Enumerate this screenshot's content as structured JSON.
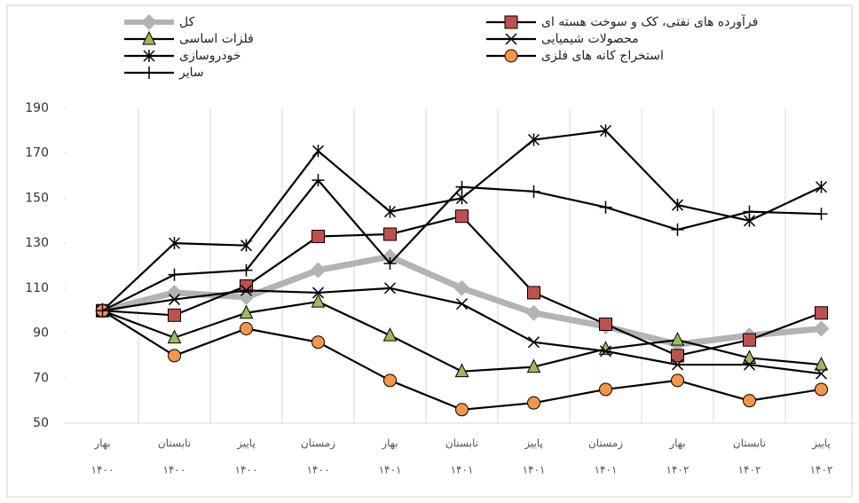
{
  "chart_data": {
    "type": "line",
    "categories": [
      [
        "بهار",
        "۱۴۰۰"
      ],
      [
        "تابستان",
        "۱۴۰۰"
      ],
      [
        "پاییز",
        "۱۴۰۰"
      ],
      [
        "زمستان",
        "۱۴۰۰"
      ],
      [
        "بهار",
        "۱۴۰۱"
      ],
      [
        "تابستان",
        "۱۴۰۱"
      ],
      [
        "پاییز",
        "۱۴۰۱"
      ],
      [
        "زمستان",
        "۱۴۰۱"
      ],
      [
        "بهار",
        "۱۴۰۲"
      ],
      [
        "تابستان",
        "۱۴۰۲"
      ],
      [
        "پاییز",
        "۱۴۰۲"
      ]
    ],
    "series": [
      {
        "name": "کل",
        "color": "#b3b3b3",
        "marker": "diamond",
        "marker_color": "#b3b3b3",
        "values": [
          100,
          108,
          106,
          118,
          124,
          110,
          99,
          93,
          85,
          89,
          92
        ]
      },
      {
        "name": "فرآورده های نفتی، کک و سوخت هسته ای",
        "color": "#000000",
        "marker": "square",
        "marker_color": "#c0504d",
        "values": [
          100,
          98,
          111,
          133,
          134,
          142,
          108,
          94,
          80,
          87,
          99
        ]
      },
      {
        "name": "فلزات اساسی",
        "color": "#000000",
        "marker": "triangle",
        "marker_color": "#9bbb59",
        "values": [
          100,
          88,
          99,
          104,
          89,
          73,
          75,
          83,
          87,
          79,
          76
        ]
      },
      {
        "name": "محصولات شیمیایی",
        "color": "#000000",
        "marker": "x",
        "marker_color": "#000000",
        "values": [
          100,
          105,
          109,
          108,
          110,
          103,
          86,
          82,
          76,
          76,
          72
        ]
      },
      {
        "name": "خودروسازی",
        "color": "#000000",
        "marker": "star",
        "marker_color": "#000000",
        "values": [
          100,
          130,
          129,
          171,
          144,
          150,
          176,
          180,
          147,
          140,
          155
        ]
      },
      {
        "name": "استخراج کانه های فلزی",
        "color": "#000000",
        "marker": "circle",
        "marker_color": "#f79646",
        "values": [
          100,
          80,
          92,
          86,
          69,
          56,
          59,
          65,
          69,
          60,
          65
        ]
      },
      {
        "name": "سایر",
        "color": "#000000",
        "marker": "plus",
        "marker_color": "#000000",
        "values": [
          100,
          116,
          118,
          158,
          121,
          155,
          153,
          146,
          136,
          144,
          143
        ]
      }
    ],
    "ylim": [
      50,
      190
    ],
    "yticks": [
      50,
      70,
      90,
      110,
      130,
      150,
      170,
      190
    ],
    "grid": "vertical"
  }
}
